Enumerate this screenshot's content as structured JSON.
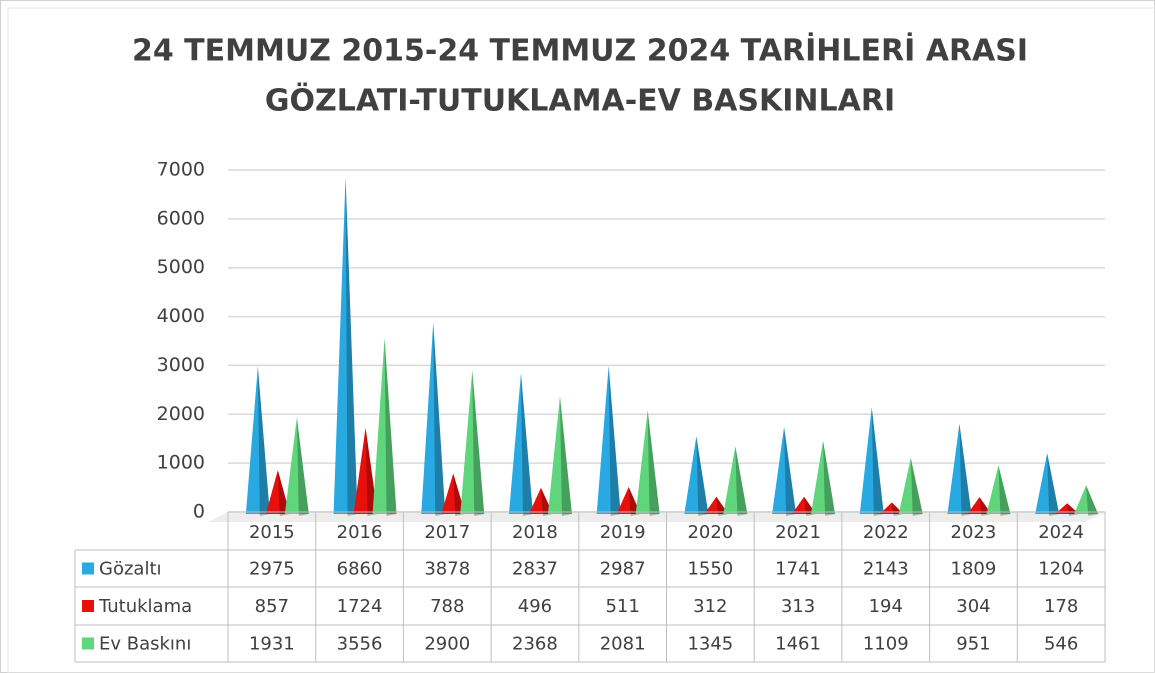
{
  "chart_data": {
    "type": "cone-bar",
    "title": [
      "24 TEMMUZ 2015-24 TEMMUZ 2024 TARİHLERİ ARASI",
      "GÖZLATI-TUTUKLAMA-EV BASKINLARI"
    ],
    "categories": [
      "2015",
      "2016",
      "2017",
      "2018",
      "2019",
      "2020",
      "2021",
      "2022",
      "2023",
      "2024"
    ],
    "series": [
      {
        "name": "Gözaltı",
        "color": "#29a9e1",
        "values": [
          2975,
          6860,
          3878,
          2837,
          2987,
          1550,
          1741,
          2143,
          1809,
          1204
        ]
      },
      {
        "name": "Tutuklama",
        "color": "#e8100c",
        "values": [
          857,
          1724,
          788,
          496,
          511,
          312,
          313,
          194,
          304,
          178
        ]
      },
      {
        "name": "Ev Baskını",
        "color": "#5fd57c",
        "values": [
          1931,
          3556,
          2900,
          2368,
          2081,
          1345,
          1461,
          1109,
          951,
          546
        ]
      }
    ],
    "ylim": [
      0,
      7000
    ],
    "yticks": [
      0,
      1000,
      2000,
      3000,
      4000,
      5000,
      6000,
      7000
    ],
    "grid": true
  }
}
